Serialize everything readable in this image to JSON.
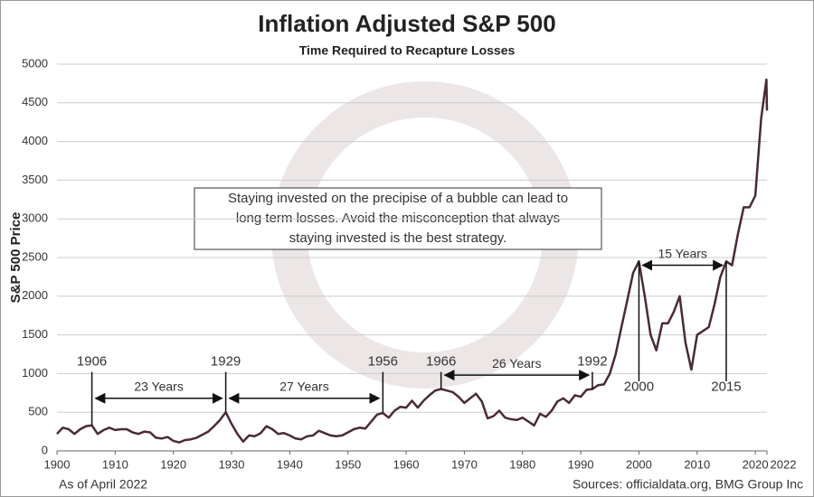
{
  "chart_data": {
    "type": "line",
    "title": "Inflation Adjusted S&P 500",
    "subtitle": "Time Required to Recapture Losses",
    "y_label": "S&P 500 Price",
    "note_lines": [
      "Staying invested on the precipise of a bubble can lead to",
      "long term losses.  Avoid the misconception that always",
      "staying invested is the best strategy."
    ],
    "footer_left": "As of April 2022",
    "footer_right": "Sources: officialdata.org, BMG Group Inc",
    "color": "#4a2a35",
    "grid": true,
    "xlim": [
      1900,
      2022
    ],
    "xticks": [
      1900,
      1910,
      1920,
      1930,
      1940,
      1950,
      1960,
      1970,
      1980,
      1990,
      2000,
      2010,
      2020,
      2022
    ],
    "ylim": [
      0,
      5000
    ],
    "yticks": [
      0,
      500,
      1000,
      1500,
      2000,
      2500,
      3000,
      3500,
      4000,
      4500,
      5000
    ],
    "x": [
      1900,
      1901,
      1902,
      1903,
      1904,
      1905,
      1906,
      1907,
      1908,
      1909,
      1910,
      1911,
      1912,
      1913,
      1914,
      1915,
      1916,
      1917,
      1918,
      1919,
      1920,
      1921,
      1922,
      1923,
      1924,
      1925,
      1926,
      1927,
      1928,
      1929,
      1930,
      1931,
      1932,
      1933,
      1934,
      1935,
      1936,
      1937,
      1938,
      1939,
      1940,
      1941,
      1942,
      1943,
      1944,
      1945,
      1946,
      1947,
      1948,
      1949,
      1950,
      1951,
      1952,
      1953,
      1954,
      1955,
      1956,
      1957,
      1958,
      1959,
      1960,
      1961,
      1962,
      1963,
      1964,
      1965,
      1966,
      1967,
      1968,
      1969,
      1970,
      1971,
      1972,
      1973,
      1974,
      1975,
      1976,
      1977,
      1978,
      1979,
      1980,
      1981,
      1982,
      1983,
      1984,
      1985,
      1986,
      1987,
      1988,
      1989,
      1990,
      1991,
      1992,
      1993,
      1994,
      1995,
      1996,
      1997,
      1998,
      1999,
      2000,
      2001,
      2002,
      2003,
      2004,
      2005,
      2006,
      2007,
      2008,
      2009,
      2010,
      2011,
      2012,
      2013,
      2014,
      2015,
      2016,
      2017,
      2018,
      2019,
      2020,
      2021,
      2021.9,
      2022
    ],
    "values": [
      220,
      300,
      280,
      220,
      280,
      320,
      330,
      220,
      270,
      300,
      270,
      280,
      280,
      240,
      220,
      250,
      240,
      170,
      160,
      180,
      130,
      110,
      140,
      150,
      170,
      210,
      250,
      320,
      400,
      500,
      350,
      220,
      120,
      200,
      190,
      230,
      320,
      280,
      220,
      230,
      200,
      160,
      150,
      190,
      200,
      260,
      230,
      200,
      190,
      200,
      240,
      280,
      300,
      290,
      380,
      470,
      490,
      430,
      520,
      570,
      560,
      650,
      560,
      650,
      720,
      780,
      800,
      780,
      760,
      700,
      620,
      680,
      740,
      640,
      420,
      450,
      520,
      430,
      410,
      400,
      430,
      380,
      330,
      480,
      440,
      520,
      640,
      680,
      620,
      720,
      700,
      790,
      800,
      850,
      860,
      1000,
      1250,
      1600,
      1950,
      2300,
      2450,
      2000,
      1500,
      1300,
      1650,
      1650,
      1800,
      2000,
      1400,
      1050,
      1500,
      1550,
      1600,
      1900,
      2250,
      2450,
      2400,
      2800,
      3150,
      3150,
      3300,
      4300,
      4800,
      4400
    ],
    "markers": [
      1906,
      1929,
      1956,
      1966,
      1992,
      2000,
      2015
    ],
    "spans": [
      {
        "label": "23 Years",
        "from": 1906,
        "to": 1929
      },
      {
        "label": "27 Years",
        "from": 1929,
        "to": 1956
      },
      {
        "label": "26 Years",
        "from": 1966,
        "to": 1992
      },
      {
        "label": "15 Years",
        "from": 2000,
        "to": 2015
      }
    ]
  }
}
